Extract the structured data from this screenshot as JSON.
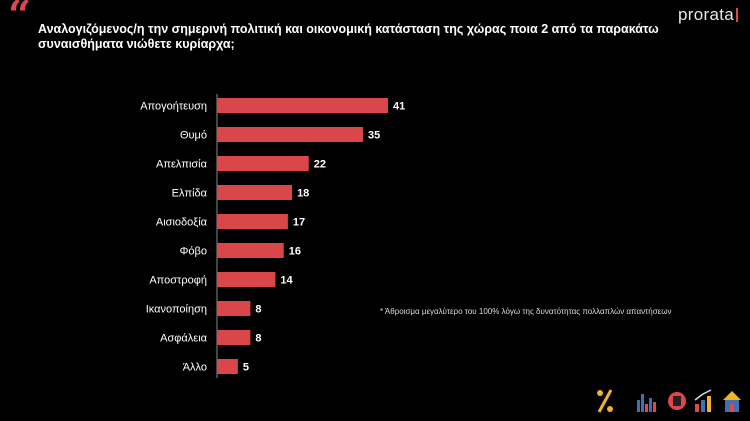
{
  "header": {
    "quote_glyph": "“",
    "title": "Αναλογιζόμενος/η την σημερινή πολιτική και οικονομική κατάσταση της χώρας ποια 2 από τα παρακάτω συναισθήματα νιώθετε κυρίαρχα;",
    "brand": "prorata"
  },
  "footnote": "* Άθροισμα μεγαλύτερο του 100% λόγω της δυνατότητας πολλαπλών απαντήσεων",
  "colors": {
    "bar": "#d9474b",
    "accent": "#e0474c",
    "background": "#000000"
  },
  "footer_icons": [
    "percent-icon",
    "bar-chart-icon",
    "cup-icon",
    "growth-chart-icon",
    "house-icon"
  ],
  "chart_data": {
    "type": "bar",
    "orientation": "horizontal",
    "categories": [
      "Απογοήτευση",
      "Θυμό",
      "Απελπισία",
      "Ελπίδα",
      "Αισιοδοξία",
      "Φόβο",
      "Αποστροφή",
      "Ικανοποίηση",
      "Ασφάλεια",
      "Άλλο"
    ],
    "values": [
      41,
      35,
      22,
      18,
      17,
      16,
      14,
      8,
      8,
      5
    ],
    "title": "",
    "xlabel": "",
    "ylabel": "",
    "xlim": [
      0,
      41
    ],
    "grid": false,
    "legend": "none"
  }
}
